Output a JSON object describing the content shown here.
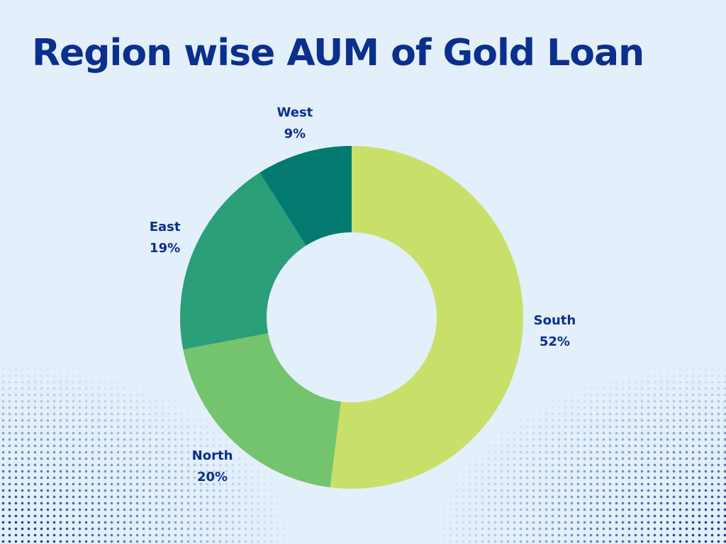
{
  "chart_data": {
    "type": "donut",
    "title": "Region wise AUM of Gold Loan",
    "categories": [
      "South",
      "North",
      "East",
      "West"
    ],
    "values": [
      52,
      20,
      19,
      9
    ],
    "value_labels": [
      "52%",
      "20%",
      "19%",
      "9%"
    ],
    "colors": [
      "#c8e06a",
      "#74c46e",
      "#2b9e7a",
      "#027a70"
    ]
  }
}
